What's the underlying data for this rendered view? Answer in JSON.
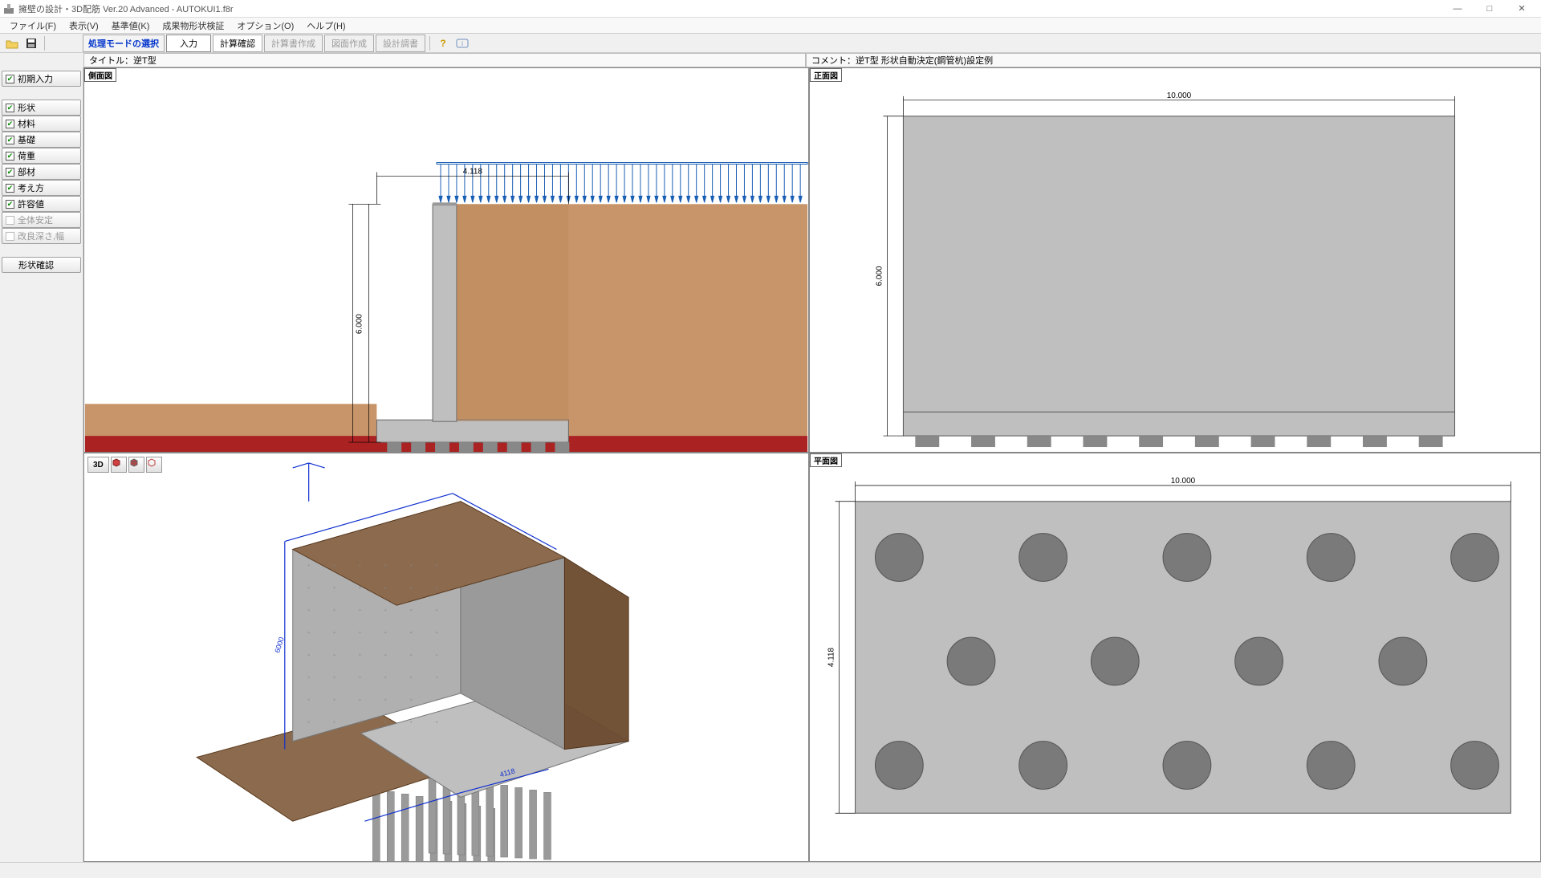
{
  "window": {
    "title": "擁壁の設計・3D配筋 Ver.20 Advanced  - AUTOKUI1.f8r",
    "min": "—",
    "max": "□",
    "close": "✕"
  },
  "menu": {
    "file": "ファイル(F)",
    "view": "表示(V)",
    "ref": "基準値(K)",
    "shape": "成果物形状検証",
    "option": "オプション(O)",
    "help": "ヘルプ(H)"
  },
  "toolbar": {
    "mode_label": "処理モードの選択",
    "btn_input": "入力",
    "btn_calc": "計算確認",
    "btn_report": "計算書作成",
    "btn_draw": "図面作成",
    "btn_design": "設計調書"
  },
  "info": {
    "title_label": "タイトル：",
    "title_value": "逆T型",
    "comment_label": "コメント：",
    "comment_value": "逆T型 形状自動決定(鋼管杭)設定例"
  },
  "sidebar": {
    "initial": "初期入力",
    "items": [
      {
        "label": "形状",
        "checked": true
      },
      {
        "label": "材料",
        "checked": true
      },
      {
        "label": "基礎",
        "checked": true
      },
      {
        "label": "荷重",
        "checked": true
      },
      {
        "label": "部材",
        "checked": true
      },
      {
        "label": "考え方",
        "checked": true
      },
      {
        "label": "許容値",
        "checked": true
      },
      {
        "label": "全体安定",
        "checked": false,
        "disabled": true
      },
      {
        "label": "改良深さ,幅",
        "checked": false,
        "disabled": true
      }
    ],
    "confirm": "形状確認"
  },
  "views": {
    "side": {
      "label": "側面図",
      "dim_h": "6.000",
      "dim_top": "4.118"
    },
    "front": {
      "label": "正面図",
      "dim_w": "10.000",
      "dim_h": "6.000"
    },
    "plan": {
      "label": "平面図",
      "dim_w": "10.000",
      "dim_h": "4.118"
    },
    "v3d": {
      "btn_3d": "3D"
    }
  },
  "colors": {
    "soil": "#c8956a",
    "soil_dark": "#b88555",
    "concrete": "#bfbfbf",
    "concrete_dark": "#9a9a9a",
    "foundation_red": "#aa2222",
    "pile": "#888888",
    "dim_line": "#000",
    "dim_arrow": "#1a5fb4",
    "wall_3d": "#b0b0b0",
    "soil_3d": "#6b4a2e",
    "soil_3d_top": "#8b6a4e",
    "blue_dim": "#1030d0"
  },
  "plan_piles": {
    "cols": [
      130,
      325,
      520,
      715,
      910
    ],
    "rows_outer": [
      78,
      312
    ],
    "row_mid": 195,
    "cols_mid": [
      227.5,
      422.5,
      617.5,
      812.5
    ],
    "r": 28
  }
}
